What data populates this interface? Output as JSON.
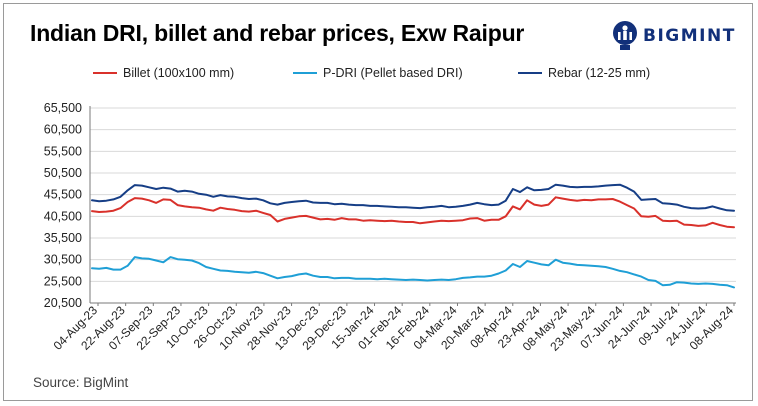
{
  "header": {
    "title": "Indian DRI, billet and rebar prices, Exw Raipur",
    "brand": "BIGMINT"
  },
  "footer": {
    "source": "Source: BigMint"
  },
  "colors": {
    "billet": "#d9312b",
    "pdri": "#1f9fd6",
    "rebar": "#163e86",
    "brand": "#12307a",
    "axis": "#7a7a7a",
    "grid": "#d9d9d9"
  },
  "icons": {
    "brand_logo": "bigmint-logo-icon"
  },
  "chart_data": {
    "type": "line",
    "title": "Indian DRI, billet and rebar prices, Exw Raipur",
    "xlabel": "",
    "ylabel": "",
    "ylim": [
      20500,
      65500
    ],
    "yticks": [
      20500,
      25500,
      30500,
      35500,
      40500,
      45500,
      50500,
      55500,
      60500,
      65500
    ],
    "ytick_labels": [
      "20,500",
      "25,500",
      "30,500",
      "35,500",
      "40,500",
      "45,500",
      "50,500",
      "55,500",
      "60,500",
      "65,500"
    ],
    "legend_position": "top",
    "grid": "horizontal",
    "x_tick_labels": [
      "04-Aug-23",
      "22-Aug-23",
      "07-Sep-23",
      "22-Sep-23",
      "10-Oct-23",
      "26-Oct-23",
      "10-Nov-23",
      "28-Nov-23",
      "13-Dec-23",
      "29-Dec-23",
      "15-Jan-24",
      "01-Feb-24",
      "16-Feb-24",
      "04-Mar-24",
      "20-Mar-24",
      "08-Apr-24",
      "23-Apr-24",
      "08-May-24",
      "23-May-24",
      "07-Jun-24",
      "24-Jun-24",
      "09-Jul-24",
      "24-Jul-24",
      "08-Aug-24"
    ],
    "series": [
      {
        "name": "Billet (100x100 mm)",
        "color": "#d9312b",
        "values": [
          41700,
          41500,
          41600,
          41800,
          42400,
          43800,
          44700,
          44600,
          44200,
          43600,
          44400,
          44300,
          43100,
          42800,
          42600,
          42500,
          42100,
          41800,
          42500,
          42200,
          42000,
          41700,
          41600,
          41800,
          41300,
          40800,
          39300,
          39900,
          40200,
          40500,
          40600,
          40200,
          39800,
          39900,
          39700,
          40100,
          39800,
          39800,
          39500,
          39600,
          39500,
          39400,
          39500,
          39300,
          39200,
          39200,
          38900,
          39100,
          39300,
          39500,
          39400,
          39500,
          39600,
          40000,
          40100,
          39500,
          39700,
          39700,
          40500,
          42800,
          42100,
          44200,
          43200,
          42900,
          43200,
          44900,
          44600,
          44300,
          44100,
          44300,
          44200,
          44400,
          44400,
          44500,
          43900,
          43100,
          42300,
          40500,
          40400,
          40600,
          39500,
          39400,
          39500,
          38600,
          38500,
          38300,
          38400,
          39000,
          38500,
          38100,
          38000
        ]
      },
      {
        "name": "P-DRI (Pellet based DRI)",
        "color": "#1f9fd6",
        "values": [
          28500,
          28400,
          28600,
          28200,
          28200,
          29100,
          31100,
          30800,
          30700,
          30300,
          29900,
          31100,
          30600,
          30500,
          30300,
          29700,
          28800,
          28400,
          28000,
          27900,
          27700,
          27600,
          27500,
          27700,
          27400,
          26800,
          26200,
          26500,
          26700,
          27100,
          27300,
          26800,
          26500,
          26500,
          26200,
          26300,
          26300,
          26100,
          26100,
          26100,
          26000,
          26100,
          26000,
          25900,
          25800,
          25900,
          25800,
          25700,
          25800,
          25900,
          25800,
          26000,
          26300,
          26400,
          26600,
          26600,
          26800,
          27300,
          28000,
          29500,
          28800,
          30200,
          29800,
          29400,
          29200,
          30500,
          29800,
          29600,
          29300,
          29200,
          29100,
          29000,
          28800,
          28400,
          27900,
          27600,
          27100,
          26600,
          25800,
          25600,
          24600,
          24700,
          25300,
          25200,
          25000,
          24900,
          25000,
          24900,
          24700,
          24600,
          24100
        ]
      },
      {
        "name": "Rebar (12-25 mm)",
        "color": "#163e86",
        "values": [
          44200,
          44000,
          44100,
          44400,
          45000,
          46500,
          47700,
          47600,
          47200,
          46800,
          47100,
          46900,
          46200,
          46400,
          46200,
          45700,
          45500,
          45000,
          45400,
          45100,
          45000,
          44700,
          44500,
          44600,
          44200,
          43500,
          43200,
          43600,
          43800,
          44000,
          44100,
          43700,
          43600,
          43600,
          43300,
          43400,
          43200,
          43100,
          43100,
          42900,
          42900,
          42800,
          42700,
          42600,
          42600,
          42500,
          42400,
          42600,
          42700,
          42900,
          42600,
          42700,
          42900,
          43200,
          43600,
          43300,
          43100,
          43200,
          44100,
          46800,
          46100,
          47200,
          46500,
          46600,
          46800,
          47800,
          47600,
          47300,
          47200,
          47300,
          47300,
          47400,
          47600,
          47700,
          47800,
          47100,
          46200,
          44300,
          44400,
          44500,
          43500,
          43400,
          43200,
          42700,
          42400,
          42300,
          42400,
          42800,
          42300,
          41900,
          41800
        ]
      }
    ]
  }
}
